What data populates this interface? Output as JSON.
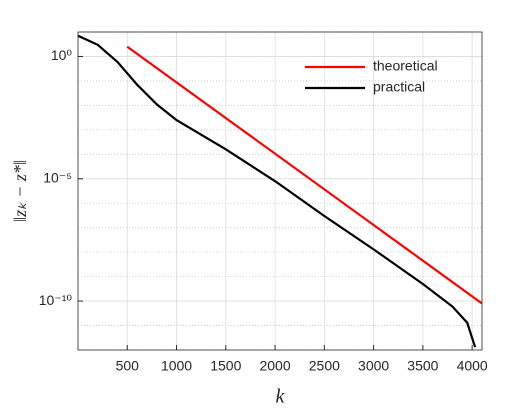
{
  "chart_data": {
    "type": "line",
    "xlabel": "k",
    "ylabel": "‖zₖ − z*‖",
    "xlim": [
      0,
      4100
    ],
    "xticks": [
      500,
      1000,
      1500,
      2000,
      2500,
      3000,
      3500,
      4000
    ],
    "ylim": [
      1e-12,
      10
    ],
    "log_y": true,
    "yticks": [
      {
        "value": 1,
        "label": "10⁰"
      },
      {
        "value": 1e-05,
        "label": "10⁻⁵"
      },
      {
        "value": 1e-10,
        "label": "10⁻¹⁰"
      }
    ],
    "grid": true,
    "legend": "upper right",
    "series": [
      {
        "name": "theoretical",
        "color": "#ff0000",
        "x": [
          500,
          4100
        ],
        "values": [
          2.5,
          8e-11
        ]
      },
      {
        "name": "practical",
        "color": "#000000",
        "x": [
          0,
          200,
          400,
          600,
          800,
          1000,
          1500,
          2000,
          2500,
          3000,
          3500,
          3800,
          3950,
          4030
        ],
        "values": [
          7,
          3,
          0.6,
          0.07,
          0.011,
          0.0025,
          0.00016,
          8e-06,
          3e-07,
          1.3e-08,
          5e-10,
          6e-11,
          1.3e-11,
          1.3e-12
        ]
      }
    ]
  }
}
